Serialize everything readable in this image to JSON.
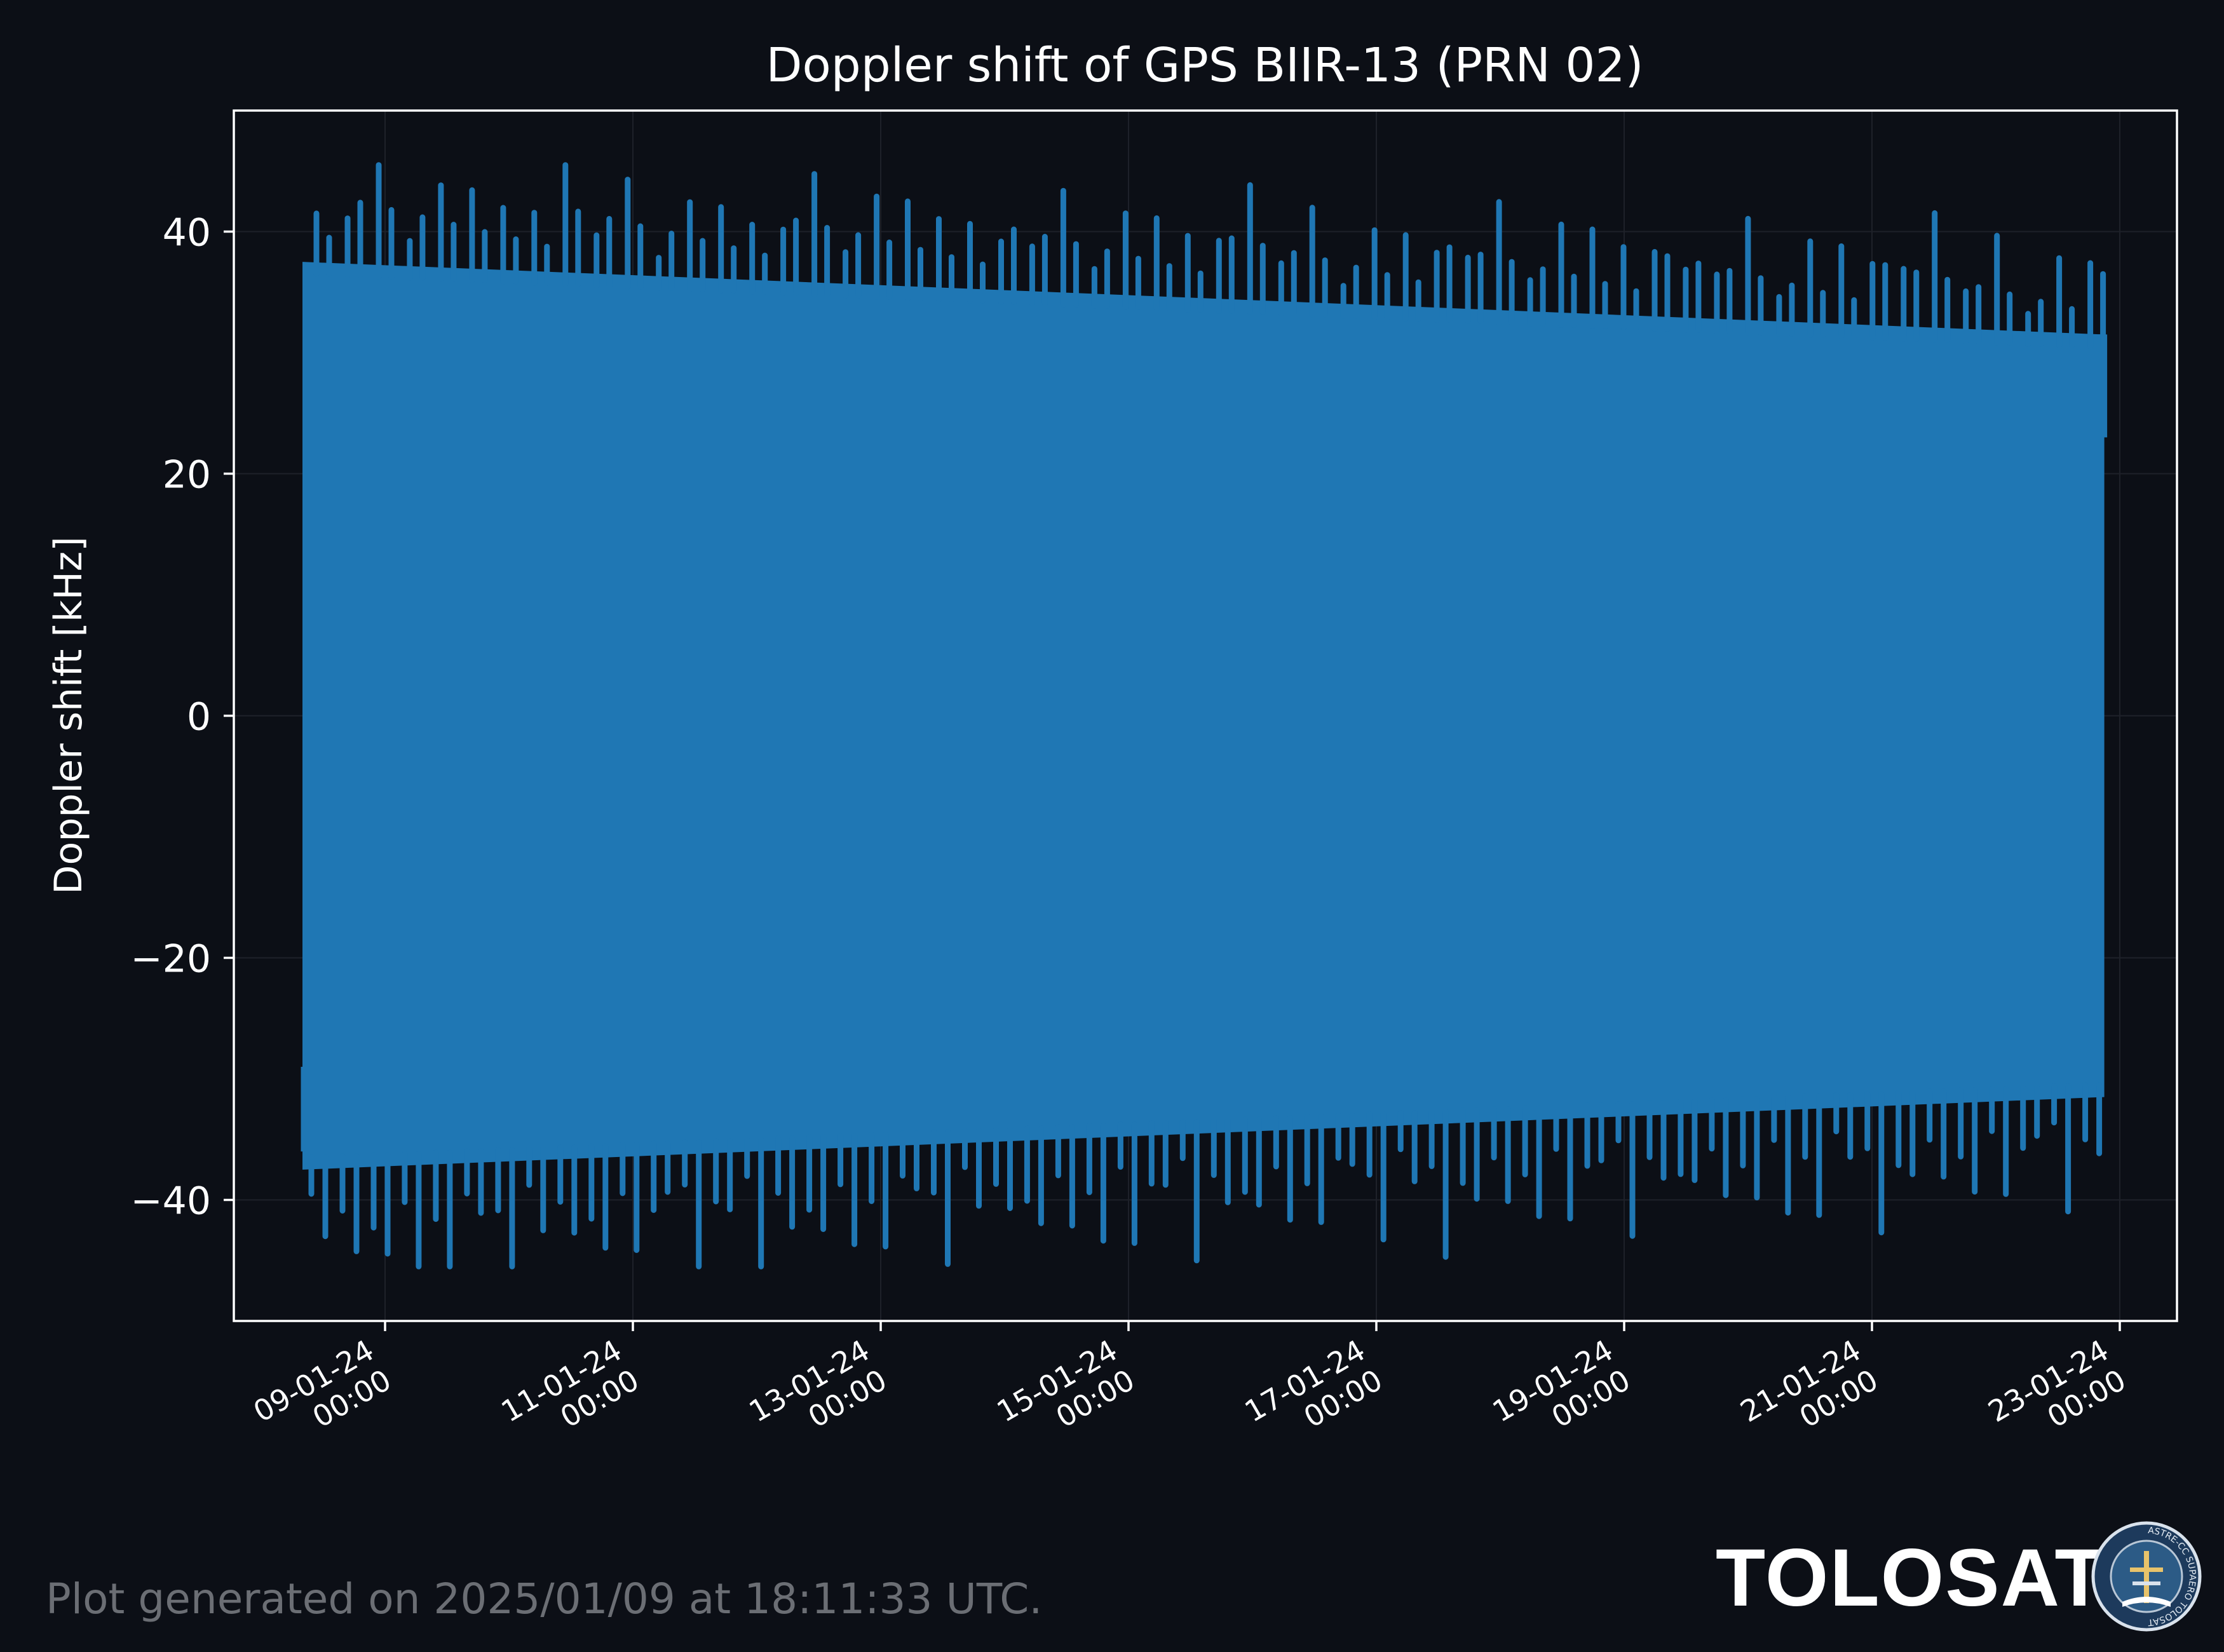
{
  "chart_data": {
    "type": "line",
    "title": "Doppler shift of GPS BIIR-13 (PRN 02)",
    "xlabel": "",
    "ylabel": "Doppler shift [kHz]",
    "x_range": [
      "2024-01-08T08:00",
      "2024-01-22T21:00"
    ],
    "ylim": [
      -50,
      50
    ],
    "y_ticks": [
      -40,
      -20,
      0,
      20,
      40
    ],
    "y_tick_labels": [
      "−40",
      "−20",
      "0",
      "20",
      "40"
    ],
    "x_ticks": [
      "2024-01-09T00:00",
      "2024-01-11T00:00",
      "2024-01-13T00:00",
      "2024-01-15T00:00",
      "2024-01-17T00:00",
      "2024-01-19T00:00",
      "2024-01-21T00:00",
      "2024-01-23T00:00"
    ],
    "x_tick_labels": [
      [
        "09-01-24",
        "00:00"
      ],
      [
        "11-01-24",
        "00:00"
      ],
      [
        "13-01-24",
        "00:00"
      ],
      [
        "15-01-24",
        "00:00"
      ],
      [
        "17-01-24",
        "00:00"
      ],
      [
        "19-01-24",
        "00:00"
      ],
      [
        "21-01-24",
        "00:00"
      ],
      [
        "23-01-24",
        "00:00"
      ]
    ],
    "grid": true,
    "series": [
      {
        "name": "",
        "color": "#1f77b4",
        "description": "Doppler shift oscillating roughly twice per day, filling the band between about -36 and +36 kHz",
        "peak_max": 45.5,
        "trough_min": -45.5,
        "envelope_upper": {
          "x": [
            "2024-01-08T08:00",
            "2024-01-22T21:00"
          ],
          "y": [
            37.5,
            31.5
          ]
        },
        "envelope_lower": {
          "x": [
            "2024-01-08T08:00",
            "2024-01-22T21:00"
          ],
          "y": [
            -37.5,
            -31.5
          ]
        }
      }
    ]
  },
  "footer": {
    "generated_text": "Plot generated on 2025/01/09 at 18:11:33 UTC."
  },
  "brand": {
    "name": "TOLOSAT",
    "logo_text": "ASTRE-CC SUPAERO TOLOSAT"
  },
  "colors": {
    "background": "#0c0f16",
    "series": "#1f77b4",
    "axes": "#ffffff",
    "footer_text": "#6b6e74"
  }
}
